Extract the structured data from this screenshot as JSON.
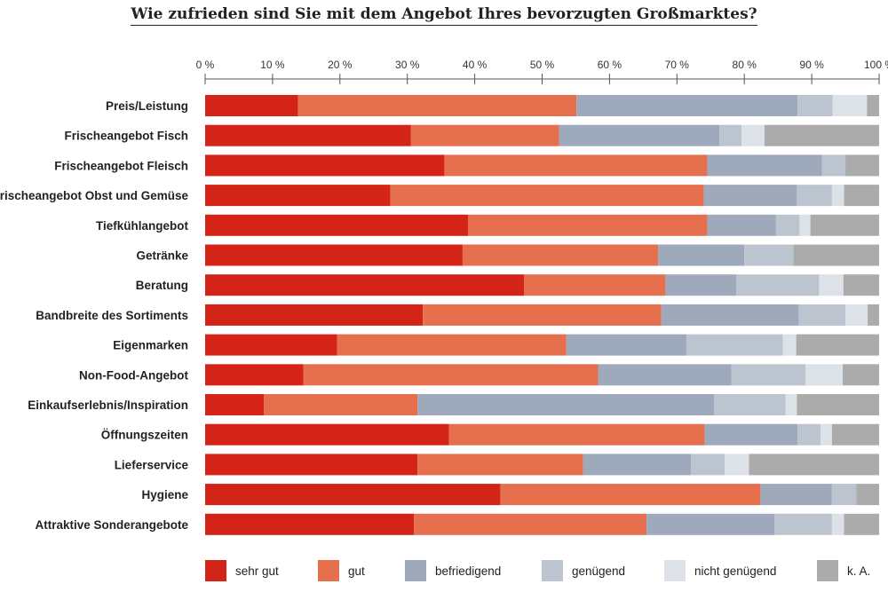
{
  "chart_data": {
    "type": "bar",
    "orientation": "horizontal",
    "stacked": true,
    "title": "Wie zufrieden sind Sie mit dem Angebot Ihres bevorzugten Großmarktes?",
    "x_ticks": [
      "0 %",
      "10 %",
      "20 %",
      "30 %",
      "40 %",
      "50 %",
      "60 %",
      "70 %",
      "80 %",
      "90 %",
      "100 %"
    ],
    "xlim": [
      0,
      100
    ],
    "legend_position": "bottom",
    "categories": [
      "Preis/Leistung",
      "Frischeangebot Fisch",
      "Frischeangebot Fleisch",
      "Frischeangebot Obst und Gemüse",
      "Tiefkühlangebot",
      "Getränke",
      "Beratung",
      "Bandbreite des Sortiments",
      "Eigenmarken",
      "Non-Food-Angebot",
      "Einkaufserlebnis/Inspiration",
      "Öffnungszeiten",
      "Lieferservice",
      "Hygiene",
      "Attraktive Sonderangebote"
    ],
    "series": [
      {
        "name": "sehr gut",
        "color": "#d42418",
        "values": [
          13.8,
          30.5,
          35.5,
          27.5,
          39.0,
          38.2,
          47.3,
          32.3,
          19.6,
          14.6,
          8.7,
          36.2,
          31.5,
          43.8,
          31.0
        ]
      },
      {
        "name": "gut",
        "color": "#e6704e",
        "values": [
          41.3,
          22.0,
          39.0,
          46.5,
          35.5,
          29.0,
          21.0,
          35.4,
          34.0,
          43.7,
          22.8,
          37.9,
          24.6,
          38.6,
          34.5
        ]
      },
      {
        "name": "befriedigend",
        "color": "#9eaabb",
        "values": [
          32.8,
          23.8,
          17.0,
          13.8,
          10.2,
          12.8,
          10.5,
          20.4,
          17.8,
          19.8,
          44.0,
          13.8,
          16.0,
          10.6,
          19.0
        ]
      },
      {
        "name": "genügend",
        "color": "#bcc4d0",
        "values": [
          5.2,
          3.3,
          3.5,
          5.2,
          3.5,
          7.3,
          12.3,
          6.9,
          14.3,
          11.0,
          10.6,
          3.4,
          5.0,
          3.6,
          8.5
        ]
      },
      {
        "name": "nicht genügend",
        "color": "#dde1e8",
        "values": [
          5.1,
          3.4,
          0,
          1.8,
          1.6,
          0,
          3.6,
          3.3,
          2.0,
          5.5,
          1.7,
          1.7,
          3.6,
          0,
          1.8
        ]
      },
      {
        "name": "k. A.",
        "color": "#ababab",
        "values": [
          1.8,
          17.0,
          5.0,
          5.2,
          10.2,
          12.7,
          5.3,
          1.7,
          12.3,
          5.4,
          12.2,
          7.0,
          19.3,
          3.4,
          5.2
        ]
      }
    ]
  }
}
